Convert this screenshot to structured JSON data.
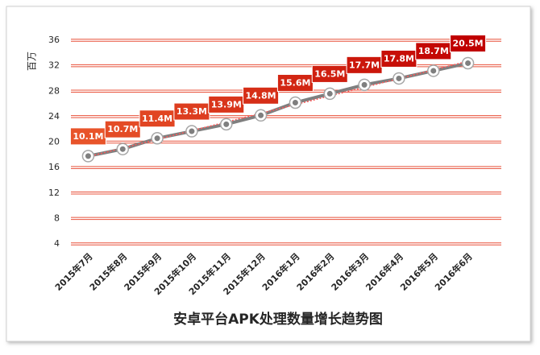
{
  "chart_data": {
    "type": "line",
    "title": "安卓平台APK处理数量增长趋势图",
    "y_label": "百万",
    "categories": [
      "2015年7月",
      "2015年8月",
      "2015年9月",
      "2015年10月",
      "2015年11月",
      "2015年12月",
      "2016年1月",
      "2016年2月",
      "2016年3月",
      "2016年4月",
      "2016年5月",
      "2016年6月"
    ],
    "values": [
      17.8,
      18.9,
      20.6,
      21.7,
      22.8,
      24.2,
      26.2,
      27.6,
      29.0,
      30.0,
      31.2,
      32.4
    ],
    "annotations": [
      "10.1M",
      "10.7M",
      "11.4M",
      "13.3M",
      "13.9M",
      "14.8M",
      "15.6M",
      "16.5M",
      "17.7M",
      "17.8M",
      "18.7M",
      "20.5M"
    ],
    "color": "#7f7f7f",
    "annotation_color_start": "#e8542a",
    "annotation_color_end": "#c00000",
    "grid_color": "#e8503a",
    "trendline": true,
    "trendline_color": "#ff5a5a",
    "ylim": [
      4,
      36
    ],
    "yticks": [
      4,
      8,
      12,
      16,
      20,
      24,
      28,
      32,
      36
    ],
    "grid": true
  }
}
